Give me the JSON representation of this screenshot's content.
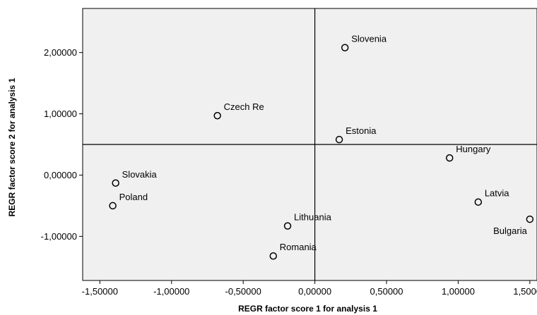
{
  "chart_data": {
    "type": "scatter",
    "title": "",
    "xlabel": "REGR factor score   1 for analysis 1",
    "ylabel": "REGR factor score   2 for analysis 1",
    "xlim": [
      -1.62,
      1.55
    ],
    "ylim": [
      -1.72,
      2.72
    ],
    "x_ticks": [
      -1.5,
      -1.0,
      -0.5,
      0.0,
      0.5,
      1.0,
      1.5
    ],
    "x_tick_labels": [
      "-1,50000",
      "-1,00000",
      "-0,50000",
      "0,00000",
      "0,50000",
      "1,00000",
      "1,50000"
    ],
    "y_ticks": [
      2.0,
      1.0,
      0.0,
      -1.0
    ],
    "y_tick_labels": [
      "2,00000",
      "1,00000",
      "0,00000",
      "-1,00000"
    ],
    "reference_lines": {
      "x": 0.0,
      "y": 0.5
    },
    "grid": false,
    "background_color": "#f0f0f0",
    "point_style": "hollow-circle",
    "points": [
      {
        "label": "Slovenia",
        "x": 0.21,
        "y": 2.08,
        "label_pos": "above-right"
      },
      {
        "label": "Czech Re",
        "x": -0.68,
        "y": 0.97,
        "label_pos": "above-right"
      },
      {
        "label": "Estonia",
        "x": 0.17,
        "y": 0.58,
        "label_pos": "above-right"
      },
      {
        "label": "Hungary",
        "x": 0.94,
        "y": 0.28,
        "label_pos": "above-right"
      },
      {
        "label": "Slovakia",
        "x": -1.39,
        "y": -0.13,
        "label_pos": "above-right"
      },
      {
        "label": "Poland",
        "x": -1.41,
        "y": -0.5,
        "label_pos": "above-right"
      },
      {
        "label": "Latvia",
        "x": 1.14,
        "y": -0.44,
        "label_pos": "above-right"
      },
      {
        "label": "Bulgaria",
        "x": 1.5,
        "y": -0.72,
        "label_pos": "below-left"
      },
      {
        "label": "Lithuania",
        "x": -0.19,
        "y": -0.83,
        "label_pos": "above-right"
      },
      {
        "label": "Romania",
        "x": -0.29,
        "y": -1.32,
        "label_pos": "above-right"
      }
    ]
  }
}
